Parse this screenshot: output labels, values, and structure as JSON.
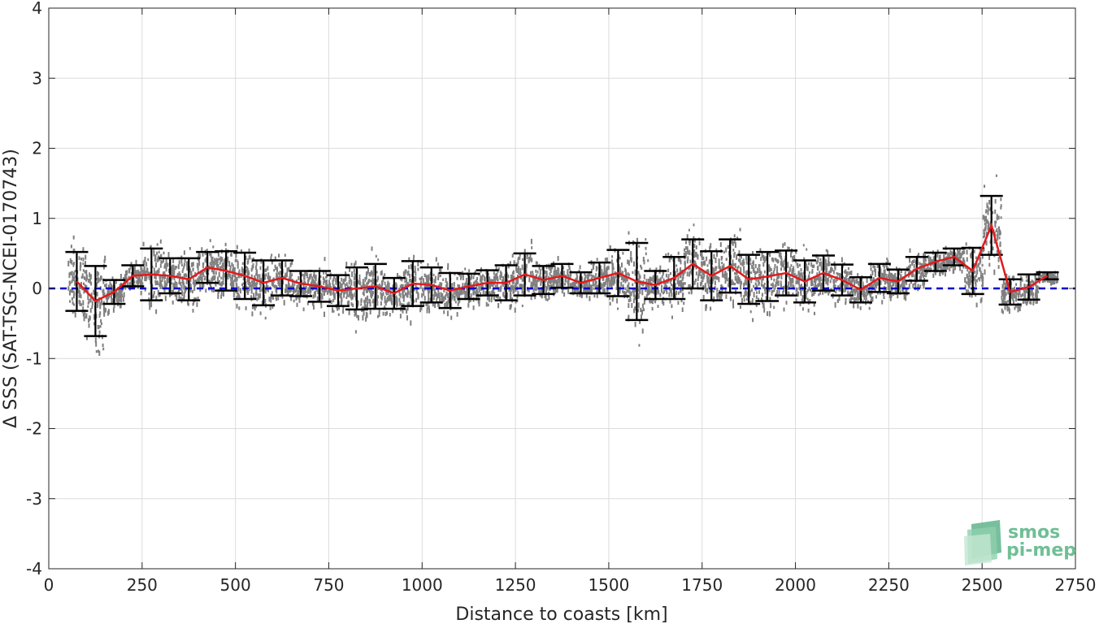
{
  "chart_data": {
    "type": "scatter",
    "xlabel": "Distance to coasts [km]",
    "ylabel": "Δ SSS (SAT-TSG-NCEI-0170743)",
    "xlim": [
      0,
      2750
    ],
    "ylim": [
      -4,
      4
    ],
    "x_ticks": [
      0,
      250,
      500,
      750,
      1000,
      1250,
      1500,
      1750,
      2000,
      2250,
      2500,
      2750
    ],
    "y_ticks": [
      -4,
      -3,
      -2,
      -1,
      0,
      1,
      2,
      3,
      4
    ],
    "grid": true,
    "reference_line": {
      "y": 0,
      "color": "#0000cc",
      "style": "dashed"
    },
    "series": [
      {
        "kind": "binned-mean",
        "color": "#e31a1c",
        "x": [
          75,
          125,
          175,
          225,
          275,
          325,
          375,
          425,
          475,
          525,
          575,
          625,
          675,
          725,
          775,
          825,
          875,
          925,
          975,
          1025,
          1075,
          1125,
          1175,
          1225,
          1275,
          1325,
          1375,
          1425,
          1475,
          1525,
          1575,
          1625,
          1675,
          1725,
          1775,
          1825,
          1875,
          1925,
          1975,
          2025,
          2075,
          2125,
          2175,
          2225,
          2275,
          2325,
          2375,
          2425,
          2475,
          2525,
          2575,
          2625,
          2675
        ],
        "mean": [
          0.1,
          -0.18,
          -0.05,
          0.18,
          0.2,
          0.18,
          0.13,
          0.3,
          0.25,
          0.18,
          0.08,
          0.15,
          0.07,
          0.03,
          -0.03,
          0.0,
          0.03,
          -0.07,
          0.07,
          0.05,
          -0.03,
          0.03,
          0.08,
          0.08,
          0.2,
          0.12,
          0.18,
          0.08,
          0.15,
          0.22,
          0.1,
          0.05,
          0.15,
          0.35,
          0.18,
          0.32,
          0.13,
          0.17,
          0.22,
          0.1,
          0.22,
          0.12,
          -0.02,
          0.15,
          0.1,
          0.28,
          0.38,
          0.45,
          0.25,
          0.9,
          -0.05,
          0.02,
          0.18
        ],
        "std": [
          0.42,
          0.5,
          0.17,
          0.15,
          0.37,
          0.25,
          0.3,
          0.22,
          0.28,
          0.33,
          0.32,
          0.25,
          0.18,
          0.22,
          0.22,
          0.3,
          0.32,
          0.22,
          0.32,
          0.25,
          0.25,
          0.18,
          0.18,
          0.25,
          0.3,
          0.2,
          0.17,
          0.15,
          0.22,
          0.33,
          0.55,
          0.2,
          0.3,
          0.35,
          0.35,
          0.38,
          0.35,
          0.35,
          0.32,
          0.3,
          0.25,
          0.22,
          0.18,
          0.2,
          0.17,
          0.17,
          0.13,
          0.12,
          0.33,
          0.42,
          0.18,
          0.18,
          0.05
        ]
      },
      {
        "kind": "scatter-cloud",
        "color": "#808080",
        "description_points": "dense clusters of grey points around each bin, spread approximately mean ± 2 std"
      }
    ]
  },
  "logo": {
    "line1": "smos",
    "line2": "pi-mep"
  }
}
